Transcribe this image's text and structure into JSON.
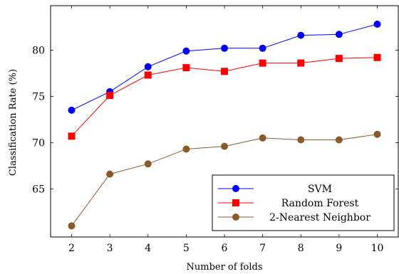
{
  "chart_data": {
    "type": "line",
    "title": "",
    "xlabel": "Number of folds",
    "ylabel": "Classification Rate (%)",
    "x": [
      2,
      3,
      4,
      5,
      6,
      7,
      8,
      9,
      10
    ],
    "xlim": [
      1.45,
      10.55
    ],
    "ylim": [
      59.8,
      84.8
    ],
    "yticks": [
      65,
      70,
      75,
      80
    ],
    "grid": false,
    "legend_position": "bottom-right",
    "series": [
      {
        "name": "SVM",
        "color": "#0000ff",
        "marker": "circle",
        "values": [
          73.5,
          75.5,
          78.2,
          79.9,
          80.2,
          80.2,
          81.6,
          81.7,
          82.8
        ]
      },
      {
        "name": "Random Forest",
        "color": "#ff0000",
        "marker": "square",
        "values": [
          70.7,
          75.1,
          77.3,
          78.1,
          77.7,
          78.6,
          78.6,
          79.1,
          79.2
        ]
      },
      {
        "name": "2-Nearest Neighbor",
        "color": "#8b5a2b",
        "marker": "circle",
        "values": [
          61.0,
          66.6,
          67.7,
          69.3,
          69.6,
          70.5,
          70.3,
          70.3,
          70.9
        ]
      }
    ]
  }
}
